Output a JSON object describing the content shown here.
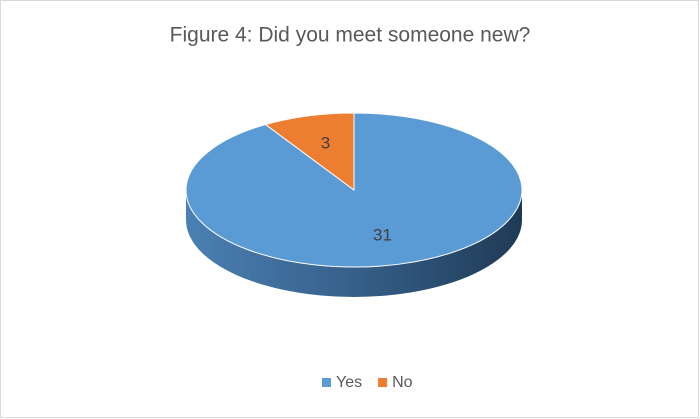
{
  "chart_data": {
    "type": "pie",
    "title": "Figure 4: Did you meet someone new?",
    "categories": [
      "Yes",
      "No"
    ],
    "values": [
      31,
      3
    ],
    "colors": [
      "#5b9bd5",
      "#ed7d31"
    ],
    "legend": "bottom"
  }
}
